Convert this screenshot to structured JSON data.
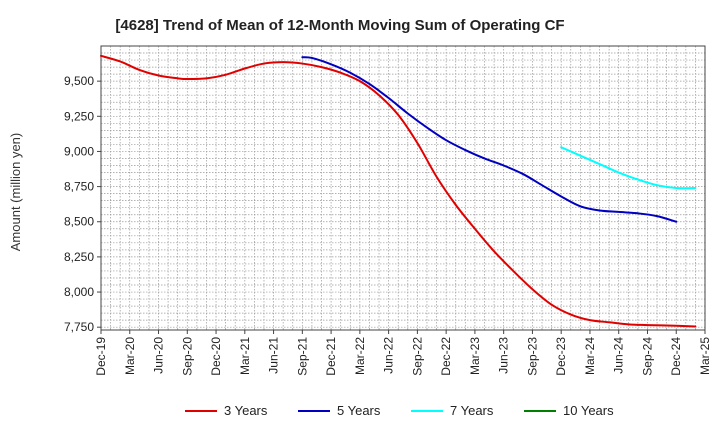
{
  "chart_data": {
    "type": "line",
    "title": "[4628]  Trend of Mean of 12-Month Moving Sum of Operating CF",
    "ylabel": "Amount (million yen)",
    "xlabel": "",
    "ylim": [
      7730,
      9750
    ],
    "yticks": [
      7750,
      8000,
      8250,
      8500,
      8750,
      9000,
      9250,
      9500
    ],
    "ytick_labels": [
      "7,750",
      "8,000",
      "8,250",
      "8,500",
      "8,750",
      "9,000",
      "9,250",
      "9,500"
    ],
    "x_start": "Dec-19",
    "x_end": "Mar-25",
    "x_months_total": 63,
    "x_tick_labels": [
      "Dec-19",
      "Mar-20",
      "Jun-20",
      "Sep-20",
      "Dec-20",
      "Mar-21",
      "Jun-21",
      "Sep-21",
      "Dec-21",
      "Mar-22",
      "Jun-22",
      "Sep-22",
      "Dec-22",
      "Mar-23",
      "Jun-23",
      "Sep-23",
      "Dec-23",
      "Mar-24",
      "Jun-24",
      "Sep-24",
      "Dec-24",
      "Mar-25"
    ],
    "grid": true,
    "legend_position": "bottom",
    "series": [
      {
        "name": "3 Years",
        "color": "#e00000",
        "points": [
          [
            0,
            9680
          ],
          [
            2,
            9640
          ],
          [
            4,
            9580
          ],
          [
            6,
            9540
          ],
          [
            8,
            9520
          ],
          [
            9,
            9515
          ],
          [
            11,
            9520
          ],
          [
            13,
            9545
          ],
          [
            15,
            9590
          ],
          [
            17,
            9625
          ],
          [
            19,
            9635
          ],
          [
            21,
            9625
          ],
          [
            23,
            9600
          ],
          [
            25,
            9560
          ],
          [
            27,
            9500
          ],
          [
            29,
            9400
          ],
          [
            31,
            9260
          ],
          [
            33,
            9060
          ],
          [
            35,
            8820
          ],
          [
            37,
            8620
          ],
          [
            39,
            8450
          ],
          [
            41,
            8290
          ],
          [
            43,
            8150
          ],
          [
            45,
            8020
          ],
          [
            47,
            7910
          ],
          [
            49,
            7840
          ],
          [
            51,
            7800
          ],
          [
            53,
            7785
          ],
          [
            55,
            7770
          ],
          [
            57,
            7765
          ],
          [
            60,
            7760
          ],
          [
            62,
            7755
          ]
        ]
      },
      {
        "name": "5 Years",
        "color": "#0000c0",
        "points": [
          [
            21,
            9670
          ],
          [
            22,
            9665
          ],
          [
            24,
            9620
          ],
          [
            26,
            9560
          ],
          [
            28,
            9480
          ],
          [
            30,
            9380
          ],
          [
            32,
            9270
          ],
          [
            34,
            9170
          ],
          [
            36,
            9080
          ],
          [
            38,
            9010
          ],
          [
            40,
            8950
          ],
          [
            42,
            8900
          ],
          [
            44,
            8840
          ],
          [
            46,
            8760
          ],
          [
            48,
            8680
          ],
          [
            50,
            8610
          ],
          [
            52,
            8580
          ],
          [
            54,
            8570
          ],
          [
            56,
            8560
          ],
          [
            58,
            8540
          ],
          [
            60,
            8500
          ]
        ]
      },
      {
        "name": "7 Years",
        "color": "#00ffff",
        "points": [
          [
            48,
            9030
          ],
          [
            50,
            8970
          ],
          [
            52,
            8910
          ],
          [
            54,
            8850
          ],
          [
            56,
            8800
          ],
          [
            58,
            8760
          ],
          [
            60,
            8740
          ],
          [
            62,
            8740
          ]
        ]
      },
      {
        "name": "10 Years",
        "color": "#008000",
        "points": []
      }
    ]
  }
}
